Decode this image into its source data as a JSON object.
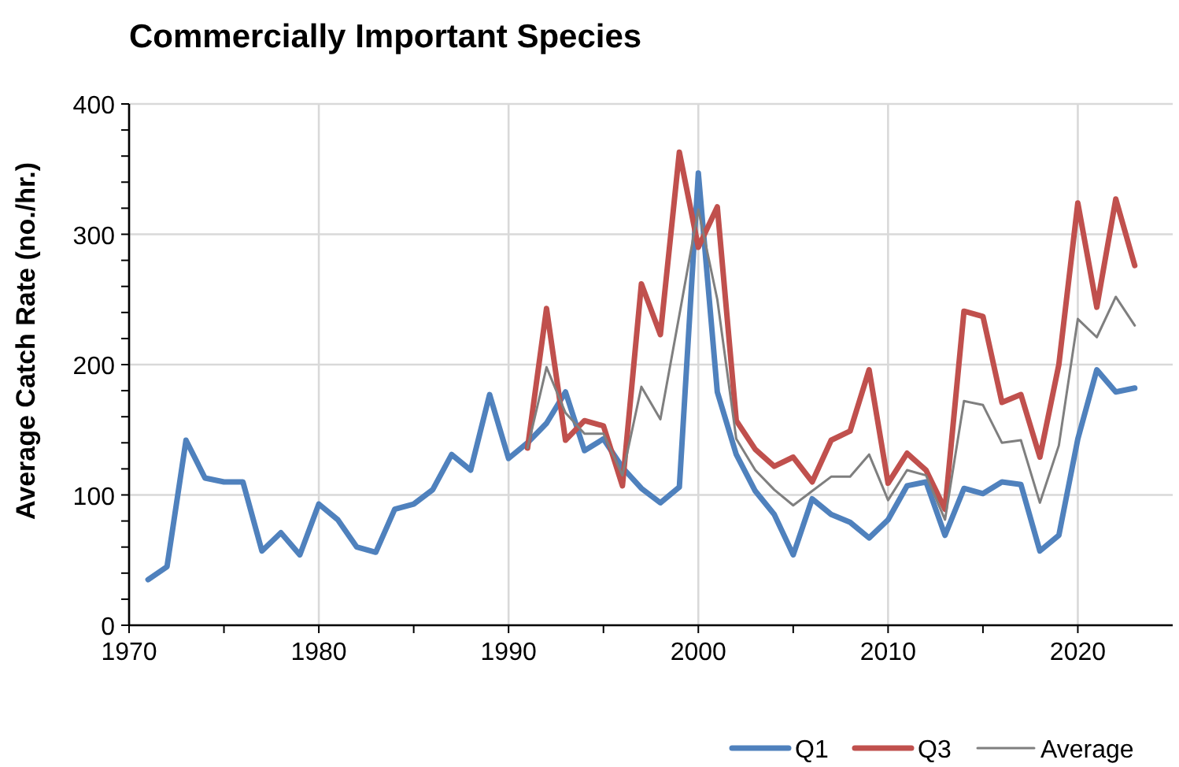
{
  "chart_data": {
    "type": "line",
    "title": "Commercially Important Species",
    "ylabel": "Average Catch Rate (no./hr.)",
    "xlim": [
      1970,
      2025
    ],
    "xticks": [
      1970,
      {
        "value": 1975,
        "label": null
      },
      1980,
      {
        "value": 1985,
        "label": null
      },
      1990,
      {
        "value": 1995,
        "label": null
      },
      2000,
      {
        "value": 2005,
        "label": null
      },
      2010,
      {
        "value": 2015,
        "label": null
      },
      2020
    ],
    "ylim": [
      0,
      400
    ],
    "yticks": [
      0,
      {
        "value": 20,
        "label": null
      },
      {
        "value": 40,
        "label": null
      },
      {
        "value": 60,
        "label": null
      },
      {
        "value": 80,
        "label": null
      },
      100,
      {
        "value": 120,
        "label": null
      },
      {
        "value": 140,
        "label": null
      },
      {
        "value": 160,
        "label": null
      },
      {
        "value": 180,
        "label": null
      },
      200,
      {
        "value": 220,
        "label": null
      },
      {
        "value": 240,
        "label": null
      },
      {
        "value": 260,
        "label": null
      },
      {
        "value": 280,
        "label": null
      },
      300,
      {
        "value": 320,
        "label": null
      },
      {
        "value": 340,
        "label": null
      },
      {
        "value": 360,
        "label": null
      },
      {
        "value": 380,
        "label": null
      },
      400
    ],
    "grid": true,
    "legend": "bottom right",
    "series": [
      {
        "name": "Q1",
        "color": "#4f81bd",
        "x": [
          1971,
          1972,
          1973,
          1974,
          1975,
          1976,
          1977,
          1978,
          1979,
          1980,
          1981,
          1982,
          1983,
          1984,
          1985,
          1986,
          1987,
          1988,
          1989,
          1990,
          1991,
          1992,
          1993,
          1994,
          1995,
          1996,
          1997,
          1998,
          1999,
          2000,
          2001,
          2002,
          2003,
          2004,
          2005,
          2006,
          2007,
          2008,
          2009,
          2010,
          2011,
          2012,
          2013,
          2014,
          2015,
          2016,
          2017,
          2018,
          2019,
          2020,
          2021,
          2022,
          2023
        ],
        "values": [
          35,
          45,
          142,
          113,
          110,
          110,
          57,
          71,
          54,
          93,
          81,
          60,
          56,
          89,
          93,
          104,
          131,
          119,
          177,
          128,
          140,
          155,
          179,
          134,
          143,
          121,
          105,
          94,
          106,
          347,
          179,
          131,
          103,
          85,
          54,
          97,
          85,
          79,
          67,
          81,
          107,
          110,
          69,
          105,
          101,
          110,
          108,
          57,
          69,
          143,
          196,
          179,
          182
        ]
      },
      {
        "name": "Q3",
        "color": "#c0504d",
        "x": [
          1991,
          1992,
          1993,
          1994,
          1995,
          1996,
          1997,
          1998,
          1999,
          2000,
          2001,
          2002,
          2003,
          2004,
          2005,
          2006,
          2007,
          2008,
          2009,
          2010,
          2011,
          2012,
          2013,
          2014,
          2015,
          2016,
          2017,
          2018,
          2019,
          2020,
          2021,
          2022,
          2023
        ],
        "values": [
          136,
          243,
          142,
          157,
          153,
          107,
          262,
          223,
          363,
          290,
          321,
          157,
          135,
          122,
          129,
          110,
          142,
          149,
          196,
          109,
          132,
          119,
          89,
          241,
          237,
          171,
          177,
          129,
          200,
          324,
          244,
          327,
          276
        ]
      },
      {
        "name": "Average",
        "color": "#7f7f7f",
        "x": [
          1991,
          1992,
          1993,
          1994,
          1995,
          1996,
          1997,
          1998,
          1999,
          2000,
          2001,
          2002,
          2003,
          2004,
          2005,
          2006,
          2007,
          2008,
          2009,
          2010,
          2011,
          2012,
          2013,
          2014,
          2015,
          2016,
          2017,
          2018,
          2019,
          2020,
          2021,
          2022,
          2023
        ],
        "values": [
          136,
          198,
          163,
          147,
          147,
          115,
          183,
          158,
          238,
          319,
          250,
          143,
          119,
          104,
          92,
          103,
          114,
          114,
          131,
          96,
          119,
          115,
          81,
          172,
          169,
          140,
          142,
          94,
          138,
          235,
          221,
          252,
          230
        ]
      }
    ]
  }
}
